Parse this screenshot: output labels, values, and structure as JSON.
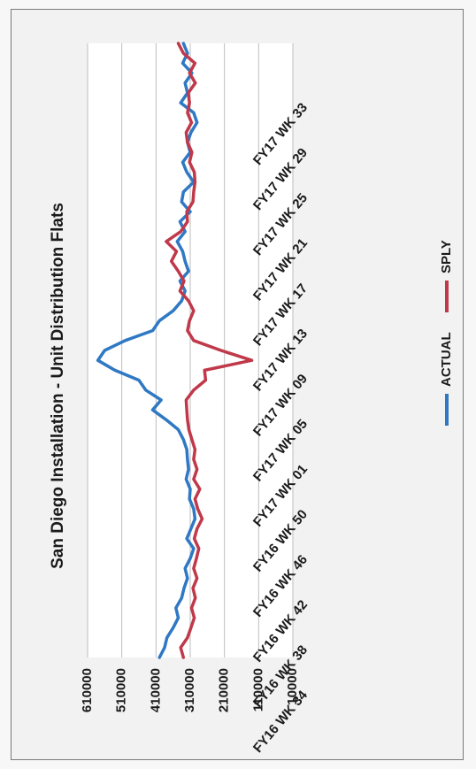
{
  "chart_data": {
    "type": "line",
    "title": "San Diego Installation - Unit Distribution Flats",
    "xlabel": "",
    "ylabel": "",
    "ylim": [
      10000,
      610000
    ],
    "y_ticks": [
      "610000",
      "510000",
      "410000",
      "310000",
      "210000",
      "110000",
      "10000"
    ],
    "x_tick_labels": [
      "FY16 WK 34",
      "FY16 WK 38",
      "FY16 WK 42",
      "FY16 WK 46",
      "FY16 WK 50",
      "FY17 WK 01",
      "FY17 WK 05",
      "FY17 WK 09",
      "FY17 WK 13",
      "FY17 WK 17",
      "FY17 WK 21",
      "FY17 WK 25",
      "FY17 WK 29",
      "FY17 WK 33"
    ],
    "grid": true,
    "legend_position": "bottom",
    "series": [
      {
        "name": "ACTUAL",
        "color": "#2f78c4",
        "values": [
          400000,
          385000,
          378000,
          360000,
          345000,
          352000,
          335000,
          328000,
          318000,
          325000,
          310000,
          300000,
          320000,
          308000,
          296000,
          300000,
          312000,
          310000,
          322000,
          315000,
          318000,
          320000,
          330000,
          345000,
          380000,
          420000,
          395000,
          440000,
          460000,
          530000,
          580000,
          560000,
          500000,
          420000,
          400000,
          360000,
          335000,
          325000,
          340000,
          315000,
          325000,
          332000,
          348000,
          325000,
          340000,
          310000,
          335000,
          330000,
          300000,
          320000,
          332000,
          310000,
          318000,
          308000,
          290000,
          300000,
          338000,
          318000,
          325000,
          305000,
          332000,
          318000,
          330000
        ]
      },
      {
        "name": "SPLY",
        "color": "#c0394a",
        "values": [
          330000,
          338000,
          318000,
          308000,
          298000,
          306000,
          295000,
          302000,
          290000,
          300000,
          292000,
          285000,
          298000,
          290000,
          275000,
          288000,
          296000,
          282000,
          300000,
          290000,
          300000,
          296000,
          305000,
          314000,
          318000,
          320000,
          322000,
          300000,
          265000,
          268000,
          130000,
          220000,
          300000,
          318000,
          312000,
          300000,
          315000,
          340000,
          328000,
          345000,
          365000,
          350000,
          380000,
          338000,
          318000,
          320000,
          302000,
          300000,
          296000,
          298000,
          312000,
          305000,
          318000,
          322000,
          306000,
          318000,
          312000,
          316000,
          295000,
          312000,
          296000,
          330000,
          345000
        ]
      }
    ]
  }
}
